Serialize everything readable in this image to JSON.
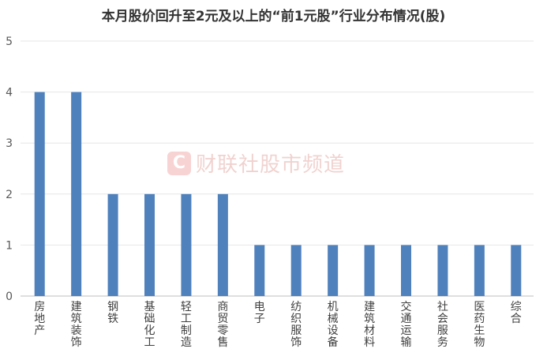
{
  "chart_data": {
    "type": "bar",
    "title": "本月股价回升至2元及以上的“前1元股”行业分布情况(股)",
    "categories": [
      "房地产",
      "建筑装饰",
      "钢铁",
      "基础化工",
      "轻工制造",
      "商贸零售",
      "电子",
      "纺织服饰",
      "机械设备",
      "建筑材料",
      "交通运输",
      "社会服务",
      "医药生物",
      "综合"
    ],
    "values": [
      4,
      4,
      2,
      2,
      2,
      2,
      1,
      1,
      1,
      1,
      1,
      1,
      1,
      1
    ],
    "ylim": [
      0,
      5
    ],
    "yticks": [
      0,
      1,
      2,
      3,
      4,
      5
    ],
    "grid": true,
    "bar_color": "#4f81bd"
  },
  "watermark": {
    "logo": "C",
    "text": "财联社股市频道"
  }
}
